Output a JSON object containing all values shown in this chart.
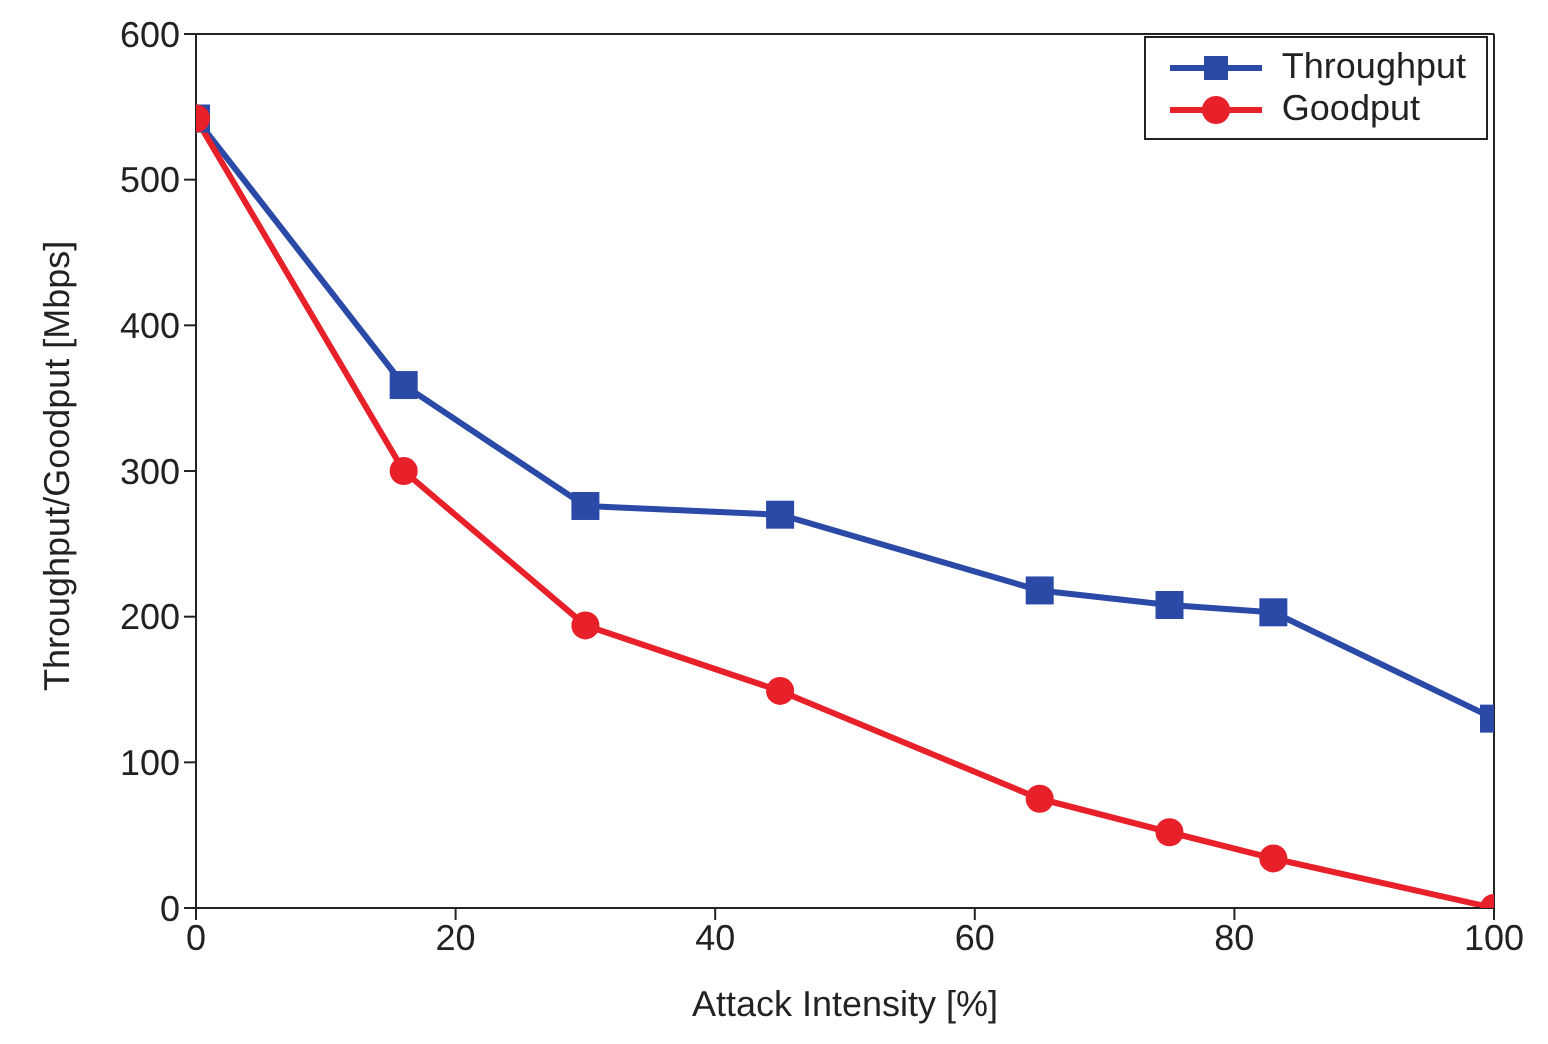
{
  "chart_data": {
    "type": "line",
    "xlabel": "Attack Intensity [%]",
    "ylabel": "Throughput/Goodput [Mbps]",
    "x": [
      0,
      16,
      30,
      45,
      65,
      75,
      83,
      100
    ],
    "series": [
      {
        "name": "Throughput",
        "color": "#2b4aa8",
        "marker": "square",
        "values": [
          542,
          359,
          276,
          270,
          218,
          208,
          203,
          130
        ]
      },
      {
        "name": "Goodput",
        "color": "#e8202a",
        "marker": "circle",
        "values": [
          542,
          300,
          194,
          149,
          75,
          52,
          34,
          0
        ]
      }
    ],
    "xlim": [
      0,
      100
    ],
    "xticks": [
      0,
      20,
      40,
      60,
      80,
      100
    ],
    "ylim": [
      0,
      600
    ],
    "yticks": [
      0,
      100,
      200,
      300,
      400,
      500,
      600
    ],
    "grid": false,
    "legend": "top right",
    "line_style": "solid"
  }
}
